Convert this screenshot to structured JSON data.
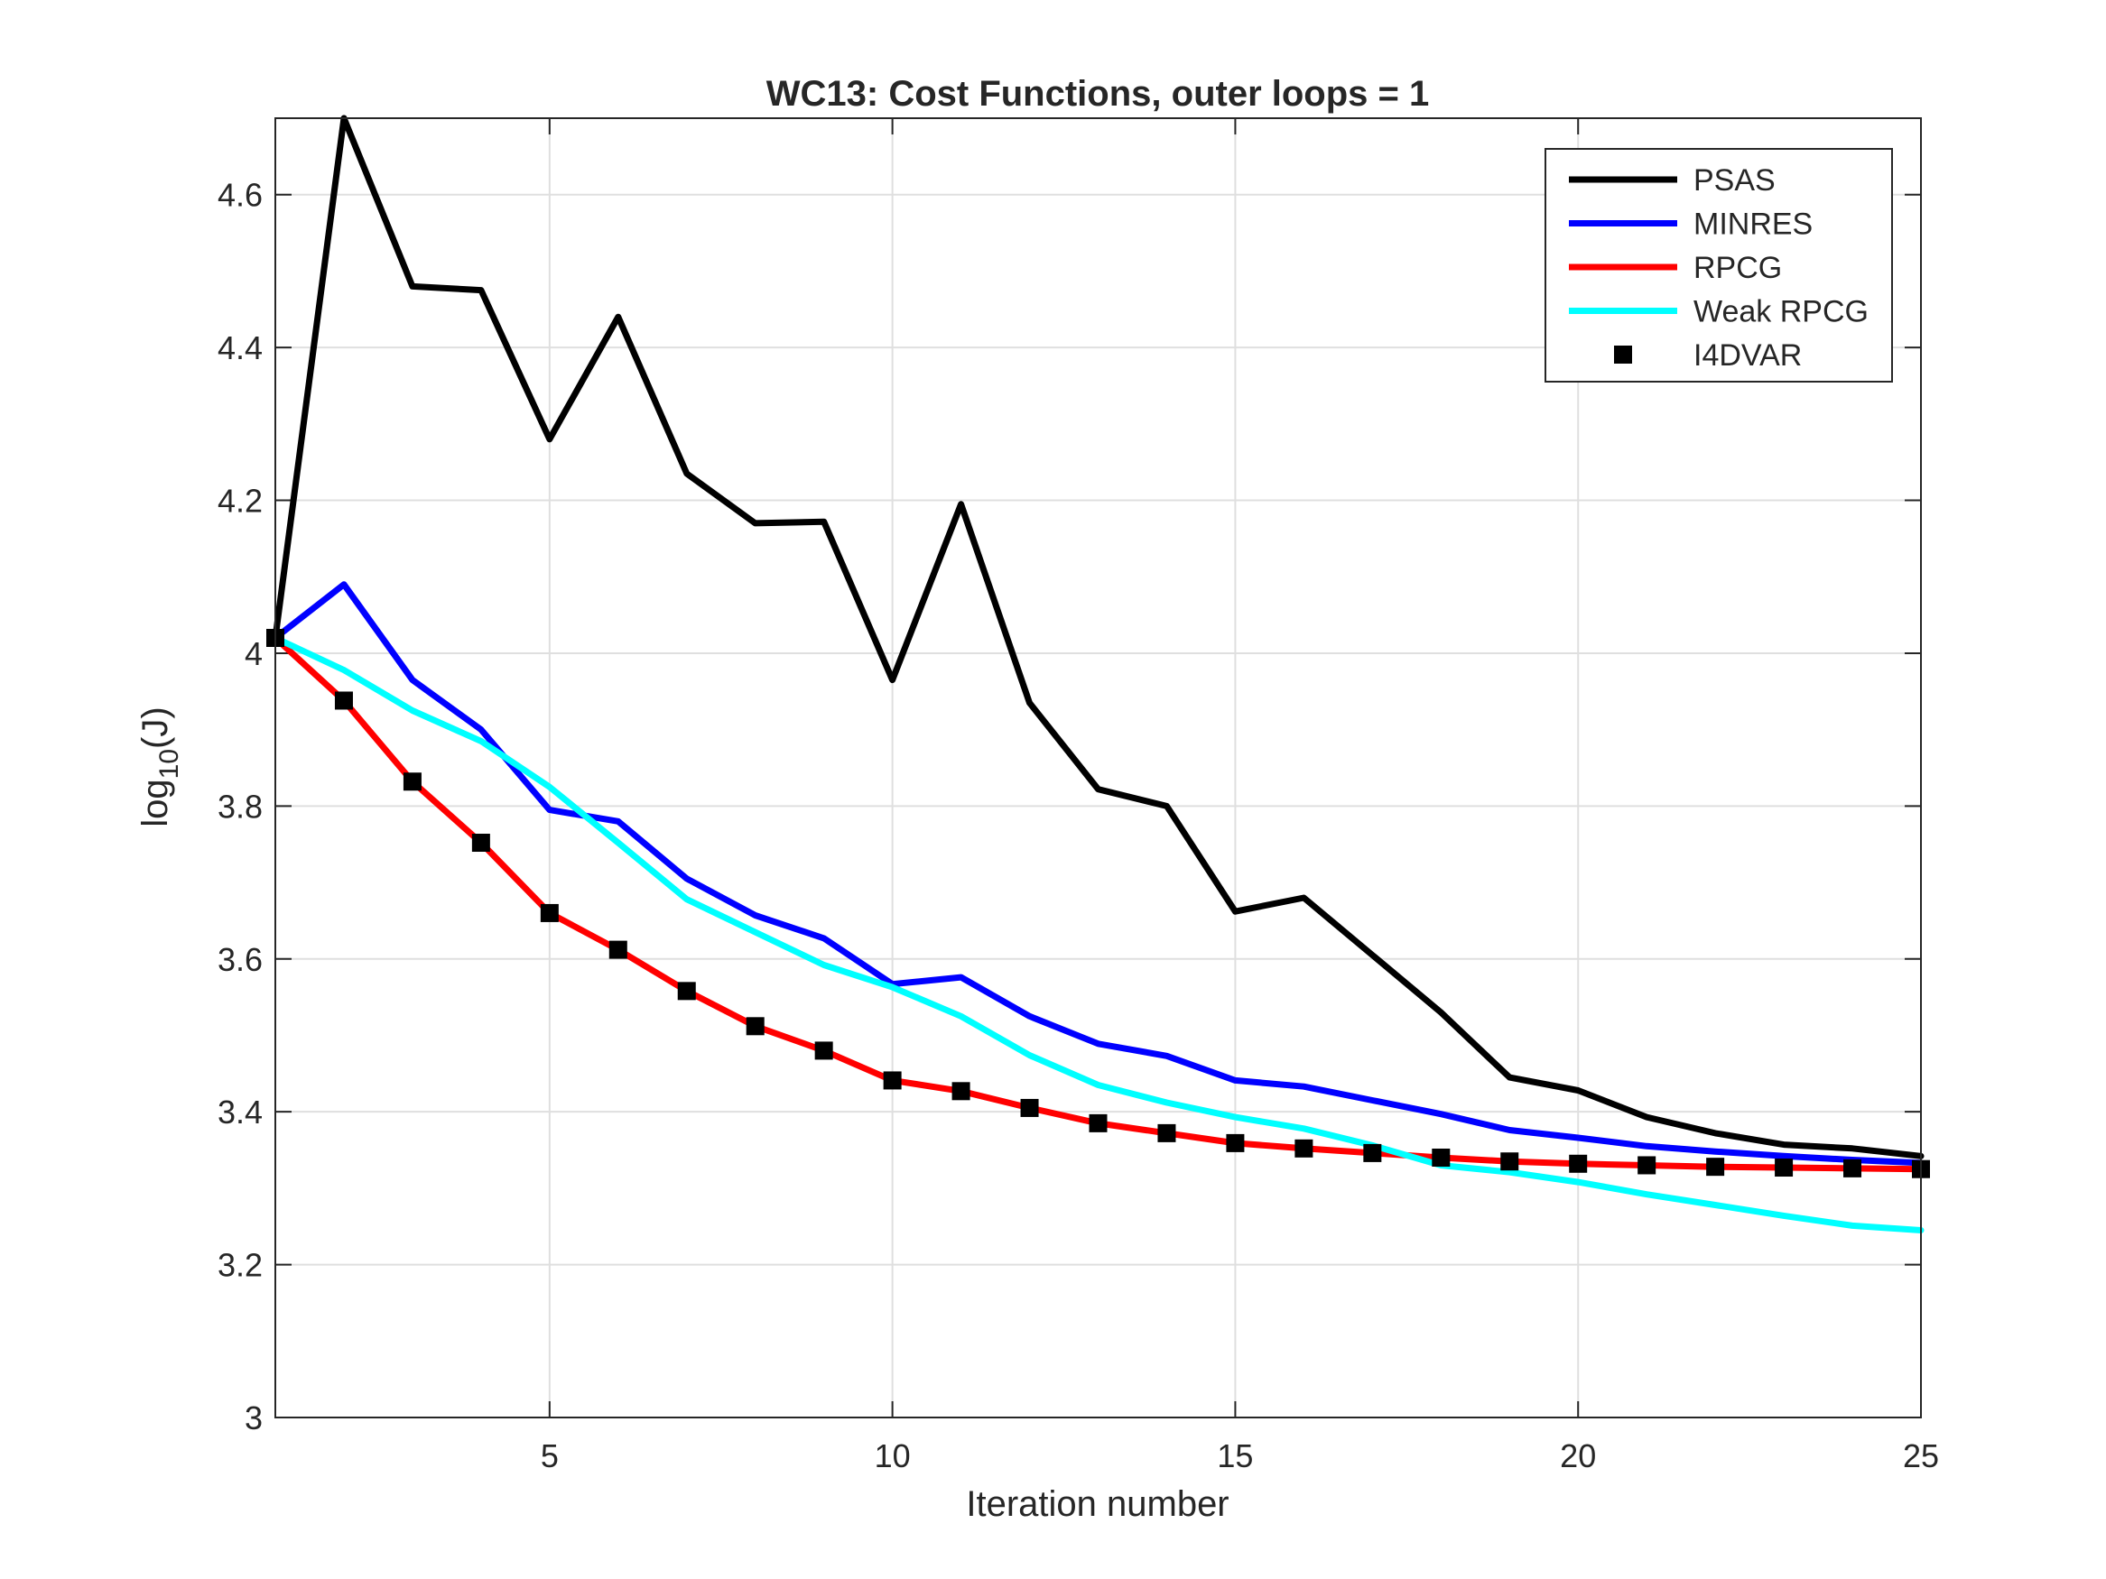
{
  "chart_data": {
    "type": "line",
    "title": "WC13: Cost Functions, outer loops = 1",
    "xlabel": "Iteration number",
    "ylabel_main": "log",
    "ylabel_sub": "10",
    "ylabel_tail": "(J)",
    "xlim": [
      1,
      25
    ],
    "ylim": [
      3,
      4.7
    ],
    "xticks": [
      5,
      10,
      15,
      20,
      25
    ],
    "xtick_labels": [
      "5",
      "10",
      "15",
      "20",
      "25"
    ],
    "yticks": [
      3,
      3.2,
      3.4,
      3.6,
      3.8,
      4,
      4.2,
      4.4,
      4.6
    ],
    "ytick_labels": [
      "3",
      "3.2",
      "3.4",
      "3.6",
      "3.8",
      "4",
      "4.2",
      "4.4",
      "4.6"
    ],
    "grid": true,
    "legend_position": "top-right",
    "x": [
      1,
      2,
      3,
      4,
      5,
      6,
      7,
      8,
      9,
      10,
      11,
      12,
      13,
      14,
      15,
      16,
      17,
      18,
      19,
      20,
      21,
      22,
      23,
      24,
      25
    ],
    "series": [
      {
        "name": "PSAS",
        "style": "line",
        "color": "#000000",
        "values": [
          4.02,
          4.7,
          4.48,
          4.475,
          4.28,
          4.44,
          4.235,
          4.17,
          4.172,
          3.965,
          4.195,
          3.935,
          3.822,
          3.8,
          3.662,
          3.68,
          3.605,
          3.53,
          3.445,
          3.428,
          3.393,
          3.372,
          3.357,
          3.352,
          3.342
        ]
      },
      {
        "name": "MINRES",
        "style": "line",
        "color": "#0000ff",
        "values": [
          4.02,
          4.09,
          3.965,
          3.9,
          3.795,
          3.78,
          3.705,
          3.657,
          3.627,
          3.567,
          3.576,
          3.525,
          3.489,
          3.473,
          3.441,
          3.433,
          3.415,
          3.397,
          3.376,
          3.366,
          3.355,
          3.348,
          3.342,
          3.337,
          3.333
        ]
      },
      {
        "name": "RPCG",
        "style": "line",
        "color": "#ff0000",
        "values": [
          4.02,
          3.938,
          3.832,
          3.752,
          3.66,
          3.612,
          3.558,
          3.512,
          3.48,
          3.441,
          3.427,
          3.405,
          3.385,
          3.372,
          3.359,
          3.352,
          3.346,
          3.34,
          3.335,
          3.332,
          3.33,
          3.328,
          3.327,
          3.326,
          3.325
        ]
      },
      {
        "name": "Weak RPCG",
        "style": "line",
        "color": "#00ffff",
        "values": [
          4.02,
          3.978,
          3.925,
          3.885,
          3.825,
          3.752,
          3.678,
          3.635,
          3.592,
          3.563,
          3.525,
          3.474,
          3.435,
          3.412,
          3.393,
          3.378,
          3.356,
          3.33,
          3.321,
          3.308,
          3.292,
          3.278,
          3.264,
          3.251,
          3.245
        ]
      },
      {
        "name": "I4DVAR",
        "style": "marker",
        "color": "#000000",
        "values": [
          4.02,
          3.938,
          3.832,
          3.752,
          3.66,
          3.612,
          3.558,
          3.512,
          3.48,
          3.441,
          3.427,
          3.405,
          3.385,
          3.372,
          3.359,
          3.352,
          3.346,
          3.34,
          3.335,
          3.332,
          3.33,
          3.328,
          3.327,
          3.326,
          3.325
        ]
      }
    ]
  }
}
